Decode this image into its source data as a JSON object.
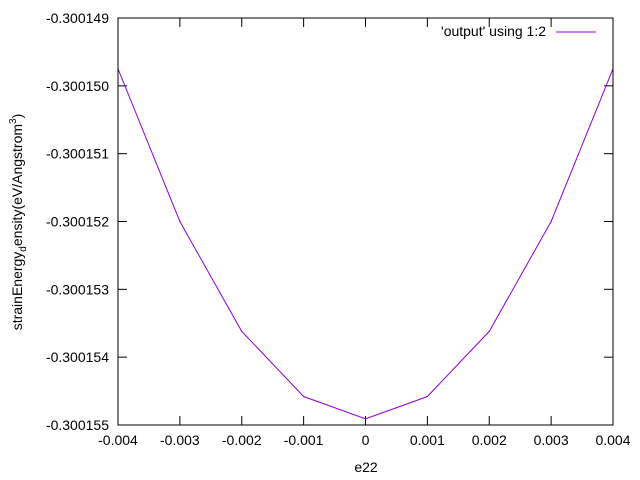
{
  "chart_data": {
    "type": "line",
    "xlabel": "e22",
    "ylabel_main": "strainEnergy",
    "ylabel_sub": "d",
    "ylabel_rest": "ensity(eV/Angstrom",
    "ylabel_sup": "3",
    "ylabel_end": ")",
    "xlim": [
      -0.004,
      0.004
    ],
    "ylim": [
      -0.300155,
      -0.300149
    ],
    "xticks": [
      "-0.004",
      "-0.003",
      "-0.002",
      "-0.001",
      "0",
      "0.001",
      "0.002",
      "0.003",
      "0.004"
    ],
    "yticks": [
      "-0.300149",
      "-0.300150",
      "-0.300151",
      "-0.300152",
      "-0.300153",
      "-0.300154",
      "-0.300155"
    ],
    "legend_position": "top-right",
    "series": [
      {
        "name": "'output' using 1:2",
        "color": "#9400d3",
        "x": [
          -0.004,
          -0.003,
          -0.002,
          -0.001,
          0,
          0.001,
          0.002,
          0.003,
          0.004
        ],
        "y": [
          -0.30014975,
          -0.300152,
          -0.30015362,
          -0.30015458,
          -0.30015491,
          -0.30015458,
          -0.30015362,
          -0.300152,
          -0.30014975
        ]
      }
    ]
  }
}
